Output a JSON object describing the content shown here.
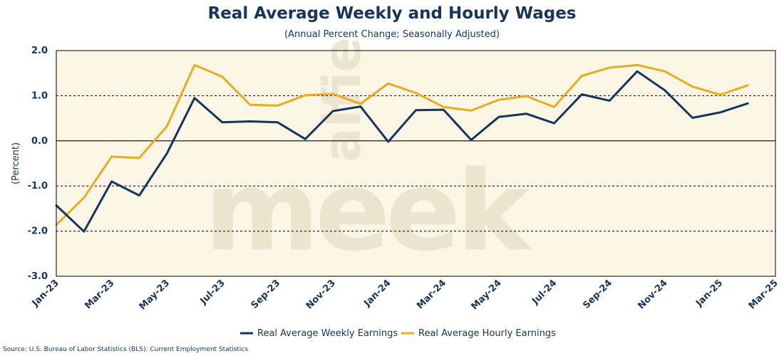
{
  "chart_data": {
    "type": "line",
    "title": "Real Average Weekly and Hourly Wages",
    "subtitle": "(Annual Percent Change; Seasonally Adjusted)",
    "xlabel": "",
    "ylabel": "(Percent)",
    "ylim": [
      -3.0,
      2.0
    ],
    "yticks": [
      "2.0",
      "1.0",
      "0.0",
      "-1.0",
      "-2.0",
      "-3.0"
    ],
    "ytick_values": [
      2,
      1,
      0,
      -1,
      -2,
      -3
    ],
    "xtick_labels": [
      "Jan-23",
      "Mar-23",
      "May-23",
      "Jul-23",
      "Sep-23",
      "Nov-23",
      "Jan-24",
      "Mar-24",
      "May-24",
      "Jul-24",
      "Sep-24",
      "Nov-24",
      "Jan-25",
      "Mar-25"
    ],
    "x": [
      "Jan-23",
      "Feb-23",
      "Mar-23",
      "Apr-23",
      "May-23",
      "Jun-23",
      "Jul-23",
      "Aug-23",
      "Sep-23",
      "Oct-23",
      "Nov-23",
      "Dec-23",
      "Jan-24",
      "Feb-24",
      "Mar-24",
      "Apr-24",
      "May-24",
      "Jun-24",
      "Jul-24",
      "Aug-24",
      "Sep-24",
      "Oct-24",
      "Nov-24",
      "Dec-24",
      "Jan-25",
      "Feb-25"
    ],
    "series": [
      {
        "name": "Real Average Weekly Earnings",
        "color": "#16355c",
        "values": [
          -1.43,
          -2.01,
          -0.9,
          -1.21,
          -0.28,
          0.95,
          0.41,
          0.43,
          0.41,
          0.04,
          0.66,
          0.76,
          -0.02,
          0.68,
          0.69,
          0.02,
          0.53,
          0.6,
          0.39,
          1.03,
          0.89,
          1.54,
          1.12,
          0.51,
          0.63,
          0.83
        ]
      },
      {
        "name": "Real Average Hourly Earnings",
        "color": "#e8ad1f",
        "values": [
          -1.86,
          -1.26,
          -0.35,
          -0.38,
          0.32,
          1.68,
          1.42,
          0.8,
          0.78,
          1.01,
          1.04,
          0.82,
          1.27,
          1.06,
          0.75,
          0.67,
          0.91,
          0.99,
          0.75,
          1.44,
          1.62,
          1.68,
          1.54,
          1.2,
          1.02,
          1.23
        ]
      }
    ],
    "grid": "dashed horizontal at 1.0, -1.0, -2.0; solid at 0.0",
    "legend": "bottom-center",
    "source": "Source: U.S. Bureau of Labor Statistics (BLS): Current Employment Statistics",
    "watermark": "alfie meek",
    "plot_background": "#faf5e4"
  }
}
